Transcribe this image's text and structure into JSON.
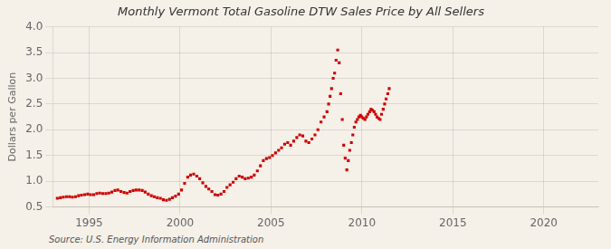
{
  "chart_data": {
    "type": "scatter",
    "title": "Monthly Vermont Total Gasoline DTW Sales Price by All Sellers",
    "ylabel": "Dollars per Gallon",
    "annotations": [
      "Source: U.S. Energy Information Administration"
    ],
    "xlim": [
      1993.0,
      2023.0
    ],
    "xticks": [
      1995,
      2000,
      2005,
      2010,
      2015,
      2020
    ],
    "ylim": [
      0.5,
      4.0
    ],
    "yticks": [
      0.5,
      {
        "value": 1.0,
        "label": "1.0"
      },
      1.5,
      {
        "value": 2.0,
        "label": "2.0"
      },
      2.5,
      {
        "value": 3.0,
        "label": "3.0"
      },
      3.5,
      {
        "value": 4.0,
        "label": "4.0"
      }
    ],
    "grid": true,
    "color": "#cc0000",
    "marker": "square",
    "x": [
      1993.25,
      1993.42,
      1993.58,
      1993.75,
      1993.92,
      1994.08,
      1994.25,
      1994.42,
      1994.58,
      1994.75,
      1994.92,
      1995.08,
      1995.25,
      1995.42,
      1995.58,
      1995.75,
      1995.92,
      1996.08,
      1996.25,
      1996.42,
      1996.58,
      1996.75,
      1996.92,
      1997.08,
      1997.25,
      1997.42,
      1997.58,
      1997.75,
      1997.92,
      1998.08,
      1998.25,
      1998.42,
      1998.58,
      1998.75,
      1998.92,
      1999.08,
      1999.25,
      1999.42,
      1999.58,
      1999.75,
      1999.92,
      2000.08,
      2000.25,
      2000.42,
      2000.58,
      2000.75,
      2000.92,
      2001.08,
      2001.25,
      2001.42,
      2001.58,
      2001.75,
      2001.92,
      2002.08,
      2002.25,
      2002.42,
      2002.58,
      2002.75,
      2002.92,
      2003.08,
      2003.25,
      2003.42,
      2003.58,
      2003.75,
      2003.92,
      2004.08,
      2004.25,
      2004.42,
      2004.58,
      2004.75,
      2004.92,
      2005.08,
      2005.25,
      2005.42,
      2005.58,
      2005.75,
      2005.92,
      2006.08,
      2006.25,
      2006.42,
      2006.58,
      2006.75,
      2006.92,
      2007.08,
      2007.25,
      2007.42,
      2007.58,
      2007.75,
      2007.92,
      2008.08,
      2008.17,
      2008.25,
      2008.33,
      2008.42,
      2008.5,
      2008.58,
      2008.67,
      2008.75,
      2008.83,
      2008.92,
      2009.0,
      2009.08,
      2009.17,
      2009.25,
      2009.33,
      2009.42,
      2009.5,
      2009.58,
      2009.67,
      2009.75,
      2009.83,
      2009.92,
      2010.0,
      2010.08,
      2010.17,
      2010.25,
      2010.33,
      2010.42,
      2010.5,
      2010.58,
      2010.67,
      2010.75,
      2010.83,
      2010.92,
      2011.0,
      2011.08,
      2011.17,
      2011.25,
      2011.33,
      2011.42,
      2011.5
    ],
    "values": [
      0.67,
      0.68,
      0.69,
      0.7,
      0.7,
      0.69,
      0.7,
      0.72,
      0.73,
      0.74,
      0.75,
      0.74,
      0.74,
      0.76,
      0.77,
      0.76,
      0.76,
      0.77,
      0.79,
      0.82,
      0.83,
      0.8,
      0.78,
      0.77,
      0.8,
      0.82,
      0.83,
      0.83,
      0.82,
      0.79,
      0.75,
      0.72,
      0.7,
      0.68,
      0.67,
      0.64,
      0.63,
      0.65,
      0.68,
      0.71,
      0.75,
      0.83,
      0.96,
      1.08,
      1.12,
      1.14,
      1.1,
      1.05,
      0.97,
      0.9,
      0.85,
      0.8,
      0.74,
      0.73,
      0.75,
      0.8,
      0.88,
      0.93,
      0.98,
      1.05,
      1.1,
      1.08,
      1.05,
      1.06,
      1.08,
      1.12,
      1.2,
      1.3,
      1.4,
      1.44,
      1.46,
      1.5,
      1.55,
      1.6,
      1.65,
      1.72,
      1.75,
      1.7,
      1.78,
      1.85,
      1.9,
      1.88,
      1.78,
      1.75,
      1.82,
      1.9,
      2.0,
      2.15,
      2.25,
      2.35,
      2.5,
      2.65,
      2.8,
      3.0,
      3.1,
      3.35,
      3.55,
      3.3,
      2.7,
      2.2,
      1.7,
      1.45,
      1.22,
      1.4,
      1.6,
      1.75,
      1.9,
      2.05,
      2.15,
      2.2,
      2.25,
      2.28,
      2.25,
      2.22,
      2.2,
      2.25,
      2.3,
      2.35,
      2.4,
      2.38,
      2.35,
      2.3,
      2.25,
      2.22,
      2.2,
      2.3,
      2.4,
      2.5,
      2.6,
      2.7,
      2.8
    ]
  }
}
